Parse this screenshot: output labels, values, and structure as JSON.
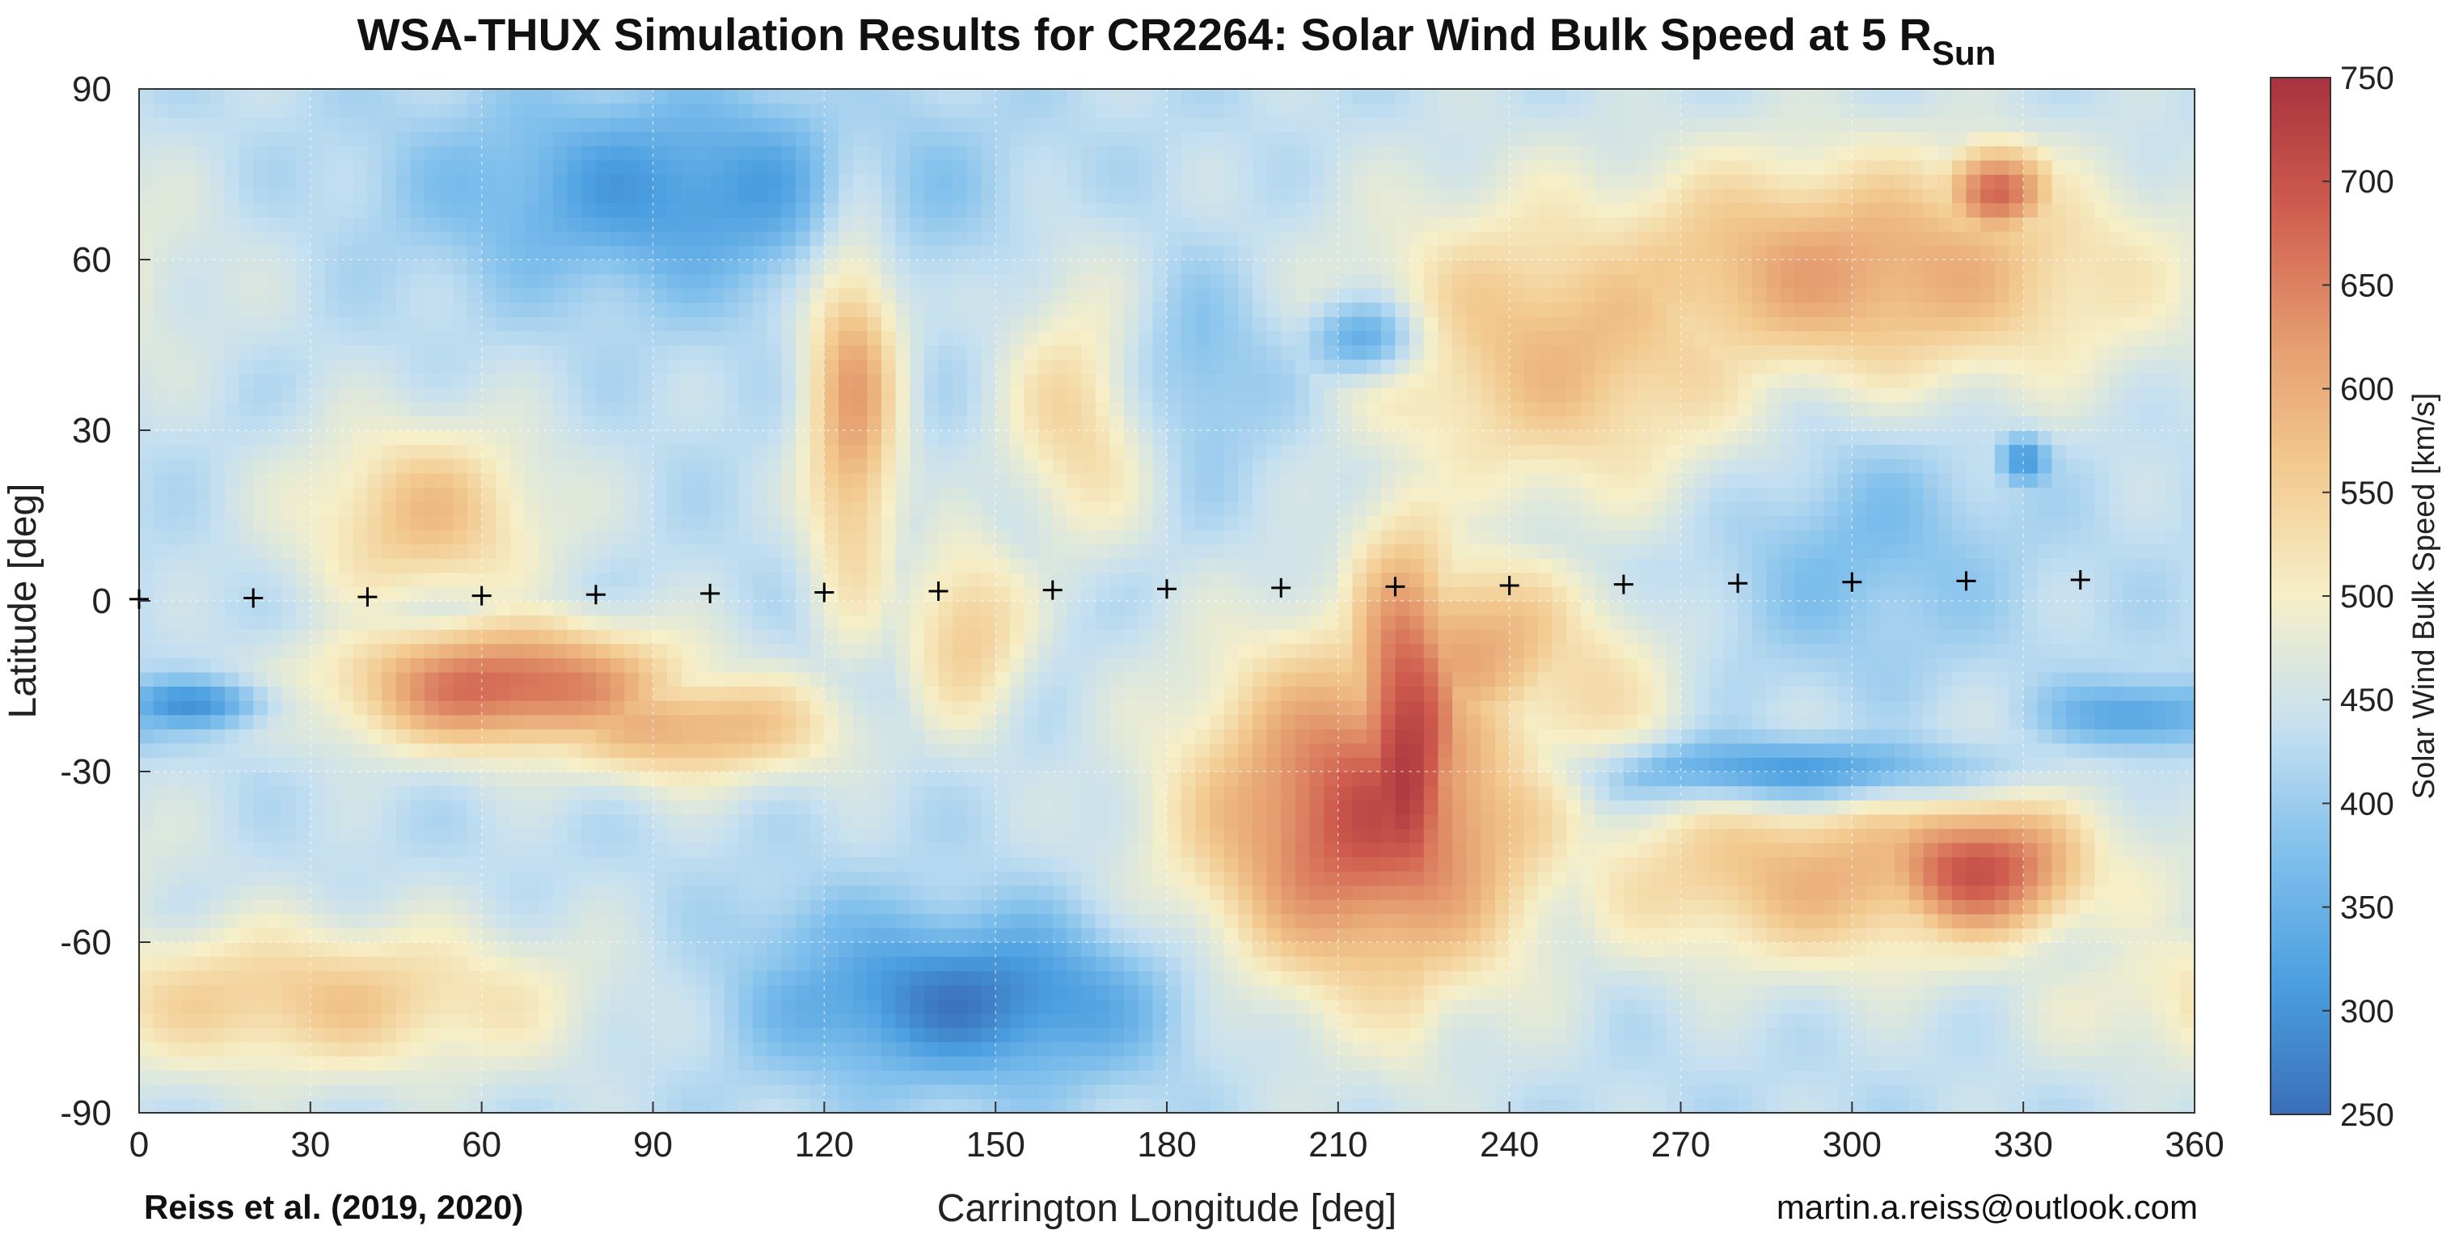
{
  "chart_data": {
    "type": "heatmap",
    "title": "WSA-THUX Simulation Results for CR2264: Solar Wind Bulk Speed at 5 R",
    "title_subscript": "Sun",
    "xlabel": "Carrington Longitude [deg]",
    "ylabel": "Latitude [deg]",
    "xlim": [
      0,
      360
    ],
    "ylim": [
      -90,
      90
    ],
    "x_ticks": [
      "0",
      "30",
      "60",
      "90",
      "120",
      "150",
      "180",
      "210",
      "240",
      "270",
      "300",
      "330",
      "360"
    ],
    "y_ticks": [
      "90",
      "60",
      "30",
      "0",
      "-30",
      "-60",
      "-90"
    ],
    "grid": true,
    "colorbar": {
      "label": "Solar Wind Bulk Speed [km/s]",
      "range": [
        250,
        750
      ],
      "ticks": [
        "750",
        "700",
        "650",
        "600",
        "550",
        "500",
        "450",
        "400",
        "350",
        "300",
        "250"
      ],
      "colors": [
        "#3a6fb8",
        "#4a9ee0",
        "#7fbfec",
        "#c6e0f0",
        "#f6efc8",
        "#f2c98f",
        "#e49a6e",
        "#cf5c4e",
        "#a8323e"
      ]
    },
    "markers": {
      "symbol": "+",
      "points": [
        {
          "lon": 0,
          "lat": 0.3
        },
        {
          "lon": 20,
          "lat": 0.5
        },
        {
          "lon": 40,
          "lat": 0.7
        },
        {
          "lon": 60,
          "lat": 0.9
        },
        {
          "lon": 80,
          "lat": 1.1
        },
        {
          "lon": 100,
          "lat": 1.3
        },
        {
          "lon": 120,
          "lat": 1.5
        },
        {
          "lon": 140,
          "lat": 1.7
        },
        {
          "lon": 160,
          "lat": 1.9
        },
        {
          "lon": 180,
          "lat": 2.1
        },
        {
          "lon": 200,
          "lat": 2.3
        },
        {
          "lon": 220,
          "lat": 2.5
        },
        {
          "lon": 240,
          "lat": 2.7
        },
        {
          "lon": 260,
          "lat": 2.9
        },
        {
          "lon": 280,
          "lat": 3.1
        },
        {
          "lon": 300,
          "lat": 3.3
        },
        {
          "lon": 320,
          "lat": 3.5
        },
        {
          "lon": 340,
          "lat": 3.7
        }
      ]
    },
    "features": {
      "background_speed": 430,
      "fast_regions": [
        {
          "lon": 222,
          "lat": -28,
          "speed": 735,
          "slon": 8,
          "slat": 28
        },
        {
          "lon": 215,
          "lat": -38,
          "speed": 700,
          "slon": 22,
          "slat": 22
        },
        {
          "lon": 232,
          "lat": -8,
          "speed": 610,
          "slon": 16,
          "slat": 12
        },
        {
          "lon": 65,
          "lat": -15,
          "speed": 680,
          "slon": 22,
          "slat": 8
        },
        {
          "lon": 95,
          "lat": -22,
          "speed": 600,
          "slon": 20,
          "slat": 7
        },
        {
          "lon": 50,
          "lat": 15,
          "speed": 570,
          "slon": 16,
          "slat": 12
        },
        {
          "lon": 322,
          "lat": -47,
          "speed": 700,
          "slon": 14,
          "slat": 9
        },
        {
          "lon": 300,
          "lat": -48,
          "speed": 590,
          "slon": 35,
          "slat": 12
        },
        {
          "lon": 300,
          "lat": 58,
          "speed": 610,
          "slon": 38,
          "slat": 15
        },
        {
          "lon": 325,
          "lat": 72,
          "speed": 690,
          "slon": 7,
          "slat": 6
        },
        {
          "lon": 250,
          "lat": 45,
          "speed": 580,
          "slon": 28,
          "slat": 20
        },
        {
          "lon": 125,
          "lat": 35,
          "speed": 610,
          "slon": 6,
          "slat": 26
        },
        {
          "lon": 165,
          "lat": 35,
          "speed": 580,
          "slon": 10,
          "slat": 16
        },
        {
          "lon": 145,
          "lat": -5,
          "speed": 560,
          "slon": 8,
          "slat": 12
        },
        {
          "lon": 30,
          "lat": -70,
          "speed": 560,
          "slon": 35,
          "slat": 10
        },
        {
          "lon": 250,
          "lat": -15,
          "speed": 540,
          "slon": 14,
          "slat": 14
        }
      ],
      "slow_regions": [
        {
          "lon": 215,
          "lat": 46,
          "speed": 280,
          "slon": 7,
          "slat": 5
        },
        {
          "lon": 95,
          "lat": 72,
          "speed": 310,
          "slon": 30,
          "slat": 12
        },
        {
          "lon": 145,
          "lat": -70,
          "speed": 270,
          "slon": 25,
          "slat": 10
        },
        {
          "lon": 290,
          "lat": -30,
          "speed": 270,
          "slon": 22,
          "slat": 4
        },
        {
          "lon": 330,
          "lat": 25,
          "speed": 290,
          "slon": 3,
          "slat": 3
        },
        {
          "lon": 180,
          "lat": 40,
          "speed": 360,
          "slon": 18,
          "slat": 12
        },
        {
          "lon": 300,
          "lat": 10,
          "speed": 370,
          "slon": 18,
          "slat": 15
        },
        {
          "lon": 10,
          "lat": -18,
          "speed": 300,
          "slon": 10,
          "slat": 3
        },
        {
          "lon": 350,
          "lat": -20,
          "speed": 310,
          "slon": 10,
          "slat": 4
        },
        {
          "lon": 120,
          "lat": -62,
          "speed": 360,
          "slon": 12,
          "slat": 8
        }
      ]
    }
  },
  "credits": {
    "left": "Reiss et al. (2019, 2020)",
    "right": "martin.a.reiss@outlook.com"
  }
}
